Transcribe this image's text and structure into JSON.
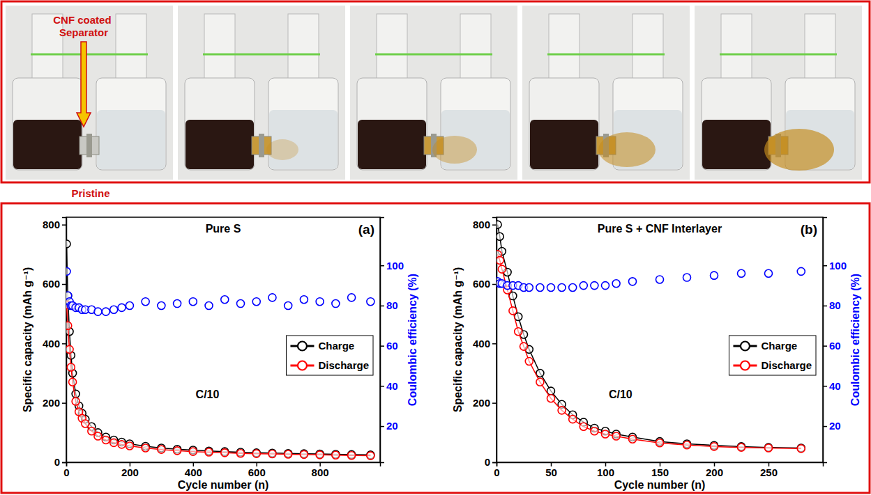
{
  "photo_strip": {
    "annotation": "CNF coated Separator",
    "caption": "Pristine"
  },
  "chart_data": [
    {
      "type": "line",
      "title": "Pure S",
      "panel": "(a)",
      "annotation": "C/10",
      "xlabel": "Cycle number (n)",
      "ylabel": "Specific capacity (mAh g⁻¹)",
      "y2label": "Coulombic efficiency (%)",
      "xlim": [
        0,
        990
      ],
      "xticks": [
        0,
        200,
        400,
        600,
        800
      ],
      "ylim": [
        0,
        825
      ],
      "yticks": [
        0,
        200,
        400,
        600,
        800
      ],
      "y2lim": [
        2,
        124
      ],
      "y2ticks": [
        20,
        40,
        60,
        80,
        100
      ],
      "grid": false,
      "legend": "right",
      "x": [
        1,
        5,
        10,
        15,
        20,
        30,
        40,
        50,
        60,
        80,
        100,
        125,
        150,
        175,
        200,
        250,
        300,
        350,
        400,
        450,
        500,
        550,
        600,
        650,
        700,
        750,
        800,
        850,
        900,
        960
      ],
      "series": [
        {
          "name": "Charge",
          "color": "#000000",
          "marker": "circle",
          "line_style": "solid",
          "values": [
            735,
            560,
            440,
            360,
            300,
            230,
            190,
            165,
            145,
            120,
            100,
            85,
            75,
            68,
            62,
            54,
            48,
            44,
            41,
            38,
            36,
            34,
            32,
            31,
            30,
            29,
            28,
            27,
            26,
            25
          ]
        },
        {
          "name": "Discharge",
          "color": "#ff0000",
          "marker": "circle",
          "line_style": "solid",
          "values": [
            530,
            460,
            380,
            320,
            270,
            205,
            170,
            148,
            130,
            105,
            88,
            75,
            66,
            60,
            55,
            48,
            43,
            39,
            36,
            34,
            32,
            30,
            29,
            28,
            27,
            26,
            25,
            24,
            23,
            22
          ]
        },
        {
          "color": "#0000ff",
          "axis": "y2",
          "marker": "circle",
          "line_style": "none",
          "values": [
            97,
            85,
            82,
            80,
            80,
            79,
            79,
            78,
            78,
            78,
            77,
            77,
            78,
            79,
            80,
            82,
            80,
            81,
            82,
            80,
            83,
            81,
            82,
            84,
            80,
            83,
            82,
            81,
            84,
            82
          ]
        }
      ]
    },
    {
      "type": "line",
      "title": "Pure S + CNF Interlayer",
      "panel": "(b)",
      "annotation": "C/10",
      "xlabel": "Cycle number (n)",
      "ylabel": "Specific capacity (mAh g⁻¹)",
      "y2label": "Coulombic efficiency (%)",
      "xlim": [
        0,
        300
      ],
      "xticks": [
        0,
        50,
        100,
        150,
        200,
        250
      ],
      "ylim": [
        0,
        825
      ],
      "yticks": [
        0,
        200,
        400,
        600,
        800
      ],
      "y2lim": [
        2,
        124
      ],
      "y2ticks": [
        20,
        40,
        60,
        80,
        100
      ],
      "grid": false,
      "legend": "right",
      "x": [
        1,
        3,
        5,
        10,
        15,
        20,
        25,
        30,
        40,
        50,
        60,
        70,
        80,
        90,
        100,
        110,
        125,
        150,
        175,
        200,
        225,
        250,
        280
      ],
      "series": [
        {
          "name": "Charge",
          "color": "#000000",
          "marker": "circle",
          "line_style": "solid",
          "values": [
            800,
            760,
            710,
            640,
            560,
            490,
            430,
            380,
            300,
            240,
            195,
            160,
            135,
            115,
            105,
            95,
            85,
            70,
            62,
            57,
            53,
            50,
            48
          ]
        },
        {
          "name": "Discharge",
          "color": "#ff0000",
          "marker": "circle",
          "line_style": "solid",
          "values": [
            700,
            680,
            650,
            580,
            510,
            440,
            390,
            340,
            270,
            215,
            175,
            145,
            120,
            105,
            95,
            88,
            78,
            65,
            58,
            53,
            50,
            48,
            46
          ]
        },
        {
          "color": "#0000ff",
          "axis": "y2",
          "marker": "circle",
          "line_style": "none",
          "values": [
            92,
            91,
            91,
            90,
            90,
            90,
            89,
            89,
            89,
            89,
            89,
            89,
            90,
            90,
            90,
            91,
            92,
            93,
            94,
            95,
            96,
            96,
            97
          ]
        }
      ]
    }
  ]
}
